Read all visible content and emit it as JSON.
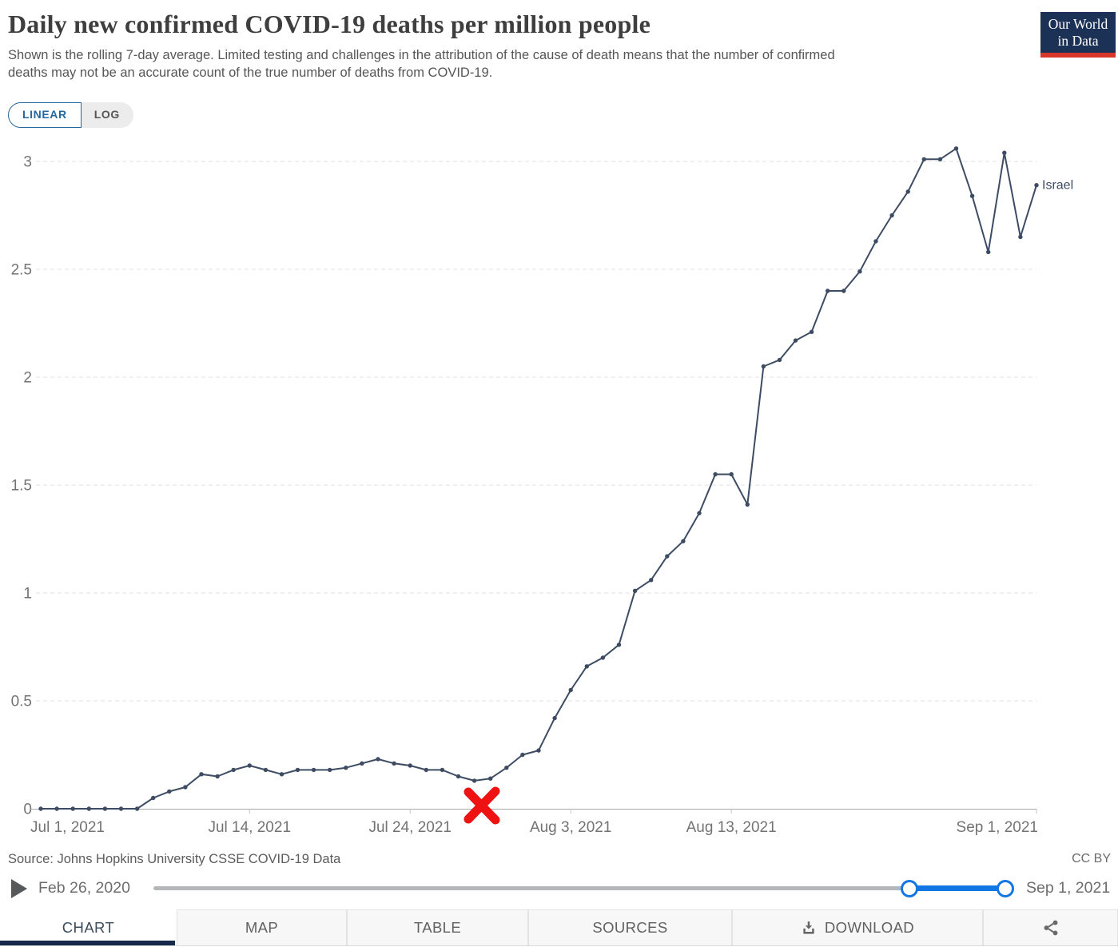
{
  "header": {
    "title": "Daily new confirmed COVID-19 deaths per million people",
    "subtitle_lines": [
      "Shown is the rolling 7-day average. Limited testing and challenges in the attribution of the cause of death means that the number of confirmed",
      "deaths may not be an accurate count of the true number of deaths from COVID-19."
    ],
    "logo": {
      "line1": "Our World",
      "line2": "in Data",
      "bg_color": "#1c3156",
      "bar_color": "#d8352b"
    }
  },
  "controls": {
    "linear": "LINEAR",
    "log": "LOG",
    "accent_color": "#2568a0"
  },
  "chart_data": {
    "type": "line",
    "title": "Daily new confirmed COVID-19 deaths per million people",
    "xlabel": "",
    "ylabel": "",
    "ylim": [
      0,
      3.1
    ],
    "grid": true,
    "line_color": "#3d4c63",
    "y_ticks": [
      0,
      0.5,
      1,
      1.5,
      2,
      2.5,
      3
    ],
    "x_ticks": [
      {
        "label": "Jul 1, 2021",
        "day": 0
      },
      {
        "label": "Jul 14, 2021",
        "day": 13
      },
      {
        "label": "Jul 24, 2021",
        "day": 23
      },
      {
        "label": "Aug 3, 2021",
        "day": 33
      },
      {
        "label": "Aug 13, 2021",
        "day": 43
      },
      {
        "label": "Sep 1, 2021",
        "day": 62
      }
    ],
    "dates": [
      "2021-07-01",
      "2021-07-02",
      "2021-07-03",
      "2021-07-04",
      "2021-07-05",
      "2021-07-06",
      "2021-07-07",
      "2021-07-08",
      "2021-07-09",
      "2021-07-10",
      "2021-07-11",
      "2021-07-12",
      "2021-07-13",
      "2021-07-14",
      "2021-07-15",
      "2021-07-16",
      "2021-07-17",
      "2021-07-18",
      "2021-07-19",
      "2021-07-20",
      "2021-07-21",
      "2021-07-22",
      "2021-07-23",
      "2021-07-24",
      "2021-07-25",
      "2021-07-26",
      "2021-07-27",
      "2021-07-28",
      "2021-07-29",
      "2021-07-30",
      "2021-07-31",
      "2021-08-01",
      "2021-08-02",
      "2021-08-03",
      "2021-08-04",
      "2021-08-05",
      "2021-08-06",
      "2021-08-07",
      "2021-08-08",
      "2021-08-09",
      "2021-08-10",
      "2021-08-11",
      "2021-08-12",
      "2021-08-13",
      "2021-08-14",
      "2021-08-15",
      "2021-08-16",
      "2021-08-17",
      "2021-08-18",
      "2021-08-19",
      "2021-08-20",
      "2021-08-21",
      "2021-08-22",
      "2021-08-23",
      "2021-08-24",
      "2021-08-25",
      "2021-08-26",
      "2021-08-27",
      "2021-08-28",
      "2021-08-29",
      "2021-08-30",
      "2021-08-31",
      "2021-09-01"
    ],
    "series": [
      {
        "name": "Israel",
        "values": [
          0,
          0,
          0,
          0,
          0,
          0,
          0,
          0.05,
          0.08,
          0.1,
          0.16,
          0.15,
          0.18,
          0.2,
          0.18,
          0.16,
          0.18,
          0.18,
          0.18,
          0.19,
          0.21,
          0.23,
          0.21,
          0.2,
          0.18,
          0.18,
          0.15,
          0.13,
          0.14,
          0.19,
          0.25,
          0.27,
          0.42,
          0.55,
          0.66,
          0.7,
          0.76,
          1.01,
          1.06,
          1.17,
          1.24,
          1.37,
          1.55,
          1.55,
          1.41,
          2.05,
          2.08,
          2.17,
          2.21,
          2.4,
          2.4,
          2.49,
          2.63,
          2.75,
          2.86,
          3.01,
          3.01,
          3.06,
          2.84,
          2.58,
          3.04,
          2.65,
          2.89
        ]
      }
    ]
  },
  "annotation": {
    "type": "x-mark",
    "color": "#ee1212",
    "near_date": "2021-07-28",
    "near_value": 0
  },
  "source": {
    "text": "Source: Johns Hopkins University CSSE COVID-19 Data",
    "license": "CC BY"
  },
  "timeline": {
    "start_label": "Feb 26, 2020",
    "end_label": "Sep 1, 2021",
    "slider_color": "#1177e3"
  },
  "footer": {
    "active_tab": "CHART",
    "tabs": {
      "chart": "CHART",
      "map": "MAP",
      "table": "TABLE",
      "sources": "SOURCES",
      "download": "DOWNLOAD"
    }
  }
}
